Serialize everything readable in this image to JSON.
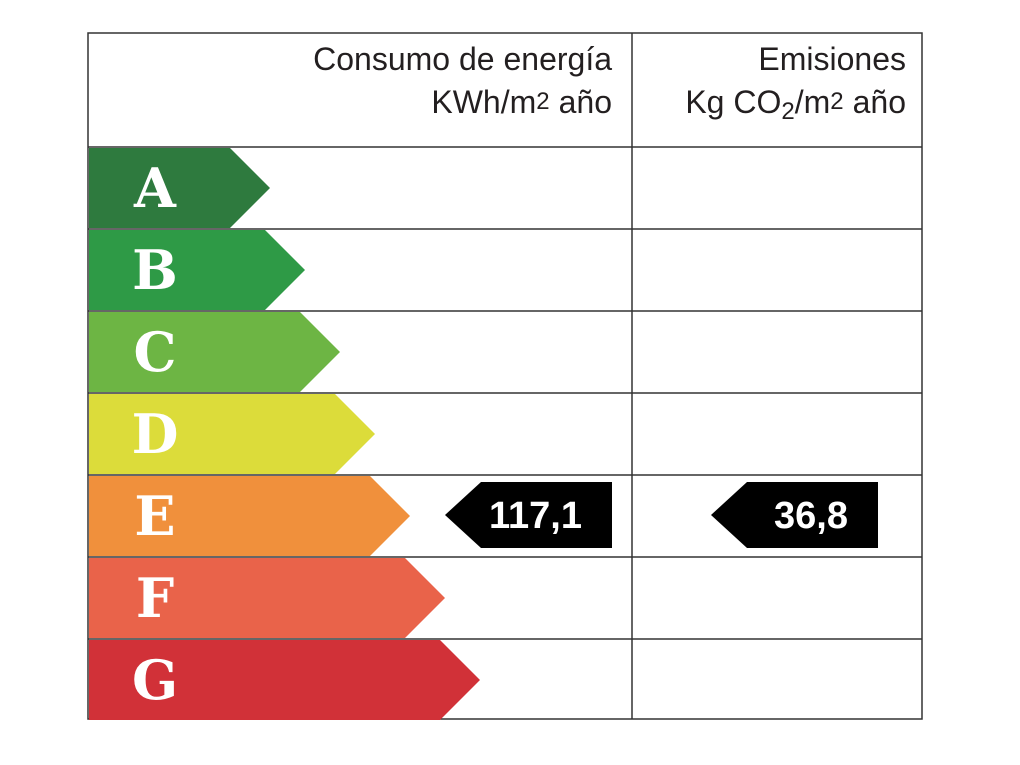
{
  "header": {
    "energy_title": "Consumo de energía",
    "energy_unit": [
      "KWh/m",
      "2",
      "año"
    ],
    "emissions_title": "Emisiones",
    "emissions_unit": [
      "Kg CO",
      "2",
      "/m",
      "2",
      "año"
    ]
  },
  "classes": [
    "A",
    "B",
    "C",
    "D",
    "E",
    "F",
    "G"
  ],
  "energy_rating": "117,1",
  "emissions_rating": "36,8"
}
